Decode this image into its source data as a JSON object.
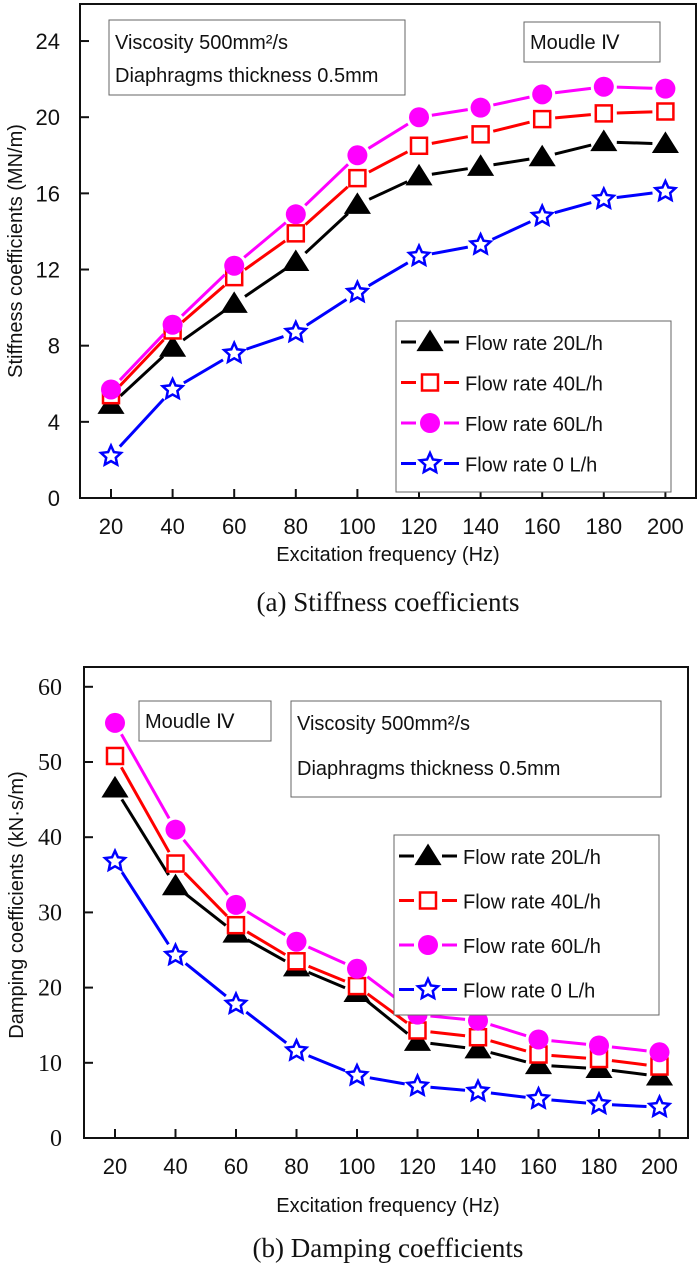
{
  "chart_data": [
    {
      "type": "line",
      "panel": "a",
      "caption": "(a) Stiffness coefficients",
      "xlabel": "Excitation frequency (Hz)",
      "ylabel": "Stiffness coefficients (MN/m)",
      "x": [
        20,
        40,
        60,
        80,
        100,
        120,
        140,
        160,
        180,
        200
      ],
      "x_ticks": [
        "20",
        "40",
        "60",
        "80",
        "100",
        "120",
        "140",
        "160",
        "180",
        "200"
      ],
      "y_ticks": [
        "0",
        "4",
        "8",
        "12",
        "16",
        "20",
        "24"
      ],
      "ylim": [
        0,
        26
      ],
      "grid": false,
      "annotations": [
        {
          "lines": [
            "Viscosity 500mm²/s",
            "Diaphragms thickness 0.5mm"
          ]
        },
        {
          "lines": [
            "Moudle Ⅳ"
          ]
        }
      ],
      "legend_placement": "bottom-right",
      "series": [
        {
          "name": "Flow rate 20L/h",
          "color": "#000000",
          "marker": "triangle-filled",
          "values": [
            4.9,
            7.9,
            10.2,
            12.4,
            15.4,
            16.9,
            17.4,
            17.9,
            18.7,
            18.6
          ]
        },
        {
          "name": "Flow rate 40L/h",
          "color": "#ff0000",
          "marker": "square-open",
          "values": [
            5.4,
            8.8,
            11.6,
            13.9,
            16.8,
            18.5,
            19.1,
            19.9,
            20.2,
            20.3
          ]
        },
        {
          "name": "Flow rate 60L/h",
          "color": "#ff00ff",
          "marker": "circle-filled",
          "values": [
            5.7,
            9.1,
            12.2,
            14.9,
            18.0,
            20.0,
            20.5,
            21.2,
            21.6,
            21.5
          ]
        },
        {
          "name": "Flow rate 0 L/h",
          "color": "#0000ff",
          "marker": "star-open",
          "values": [
            2.2,
            5.7,
            7.6,
            8.7,
            10.8,
            12.7,
            13.3,
            14.8,
            15.7,
            16.1
          ]
        }
      ]
    },
    {
      "type": "line",
      "panel": "b",
      "caption": "(b) Damping coefficients",
      "xlabel": "Excitation frequency (Hz)",
      "ylabel": "Damping coefficients  (kN·s/m)",
      "x": [
        20,
        40,
        60,
        80,
        100,
        120,
        140,
        160,
        180,
        200
      ],
      "x_ticks": [
        "20",
        "40",
        "60",
        "80",
        "100",
        "120",
        "140",
        "160",
        "180",
        "200"
      ],
      "y_ticks": [
        "0",
        "10",
        "20",
        "30",
        "40",
        "50",
        "60"
      ],
      "ylim": [
        0,
        64
      ],
      "grid": false,
      "annotations": [
        {
          "lines": [
            "Moudle Ⅳ"
          ]
        },
        {
          "lines": [
            "Viscosity 500mm²/s",
            "Diaphragms thickness 0.5mm"
          ]
        }
      ],
      "legend_placement": "top-right",
      "series": [
        {
          "name": "Flow rate 20L/h",
          "color": "#000000",
          "marker": "triangle-filled",
          "values": [
            46.5,
            33.5,
            27.2,
            22.7,
            19.3,
            12.8,
            11.8,
            9.7,
            9.2,
            8.2
          ]
        },
        {
          "name": "Flow rate 40L/h",
          "color": "#ff0000",
          "marker": "square-open",
          "values": [
            50.8,
            36.5,
            28.3,
            23.5,
            20.2,
            14.3,
            13.4,
            11.1,
            10.5,
            9.5
          ]
        },
        {
          "name": "Flow rate 60L/h",
          "color": "#ff00ff",
          "marker": "circle-filled",
          "values": [
            55.2,
            41.0,
            31.0,
            26.1,
            22.5,
            16.4,
            15.6,
            13.1,
            12.3,
            11.4
          ]
        },
        {
          "name": "Flow rate 0 L/h",
          "color": "#0000ff",
          "marker": "star-open",
          "values": [
            36.8,
            24.3,
            17.8,
            11.6,
            8.3,
            6.9,
            6.2,
            5.2,
            4.5,
            4.1
          ]
        }
      ]
    }
  ]
}
